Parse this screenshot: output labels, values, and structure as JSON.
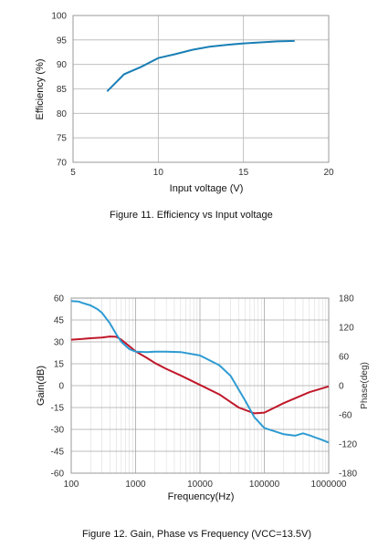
{
  "chart_data": [
    {
      "type": "line",
      "caption": "Figure 11. Efficiency vs Input voltage",
      "xlabel": "Input voltage (V)",
      "ylabel": "Efficiency (%)",
      "xlim": [
        5,
        20
      ],
      "ylim": [
        70,
        100
      ],
      "xticks": [
        5,
        10,
        15,
        20
      ],
      "yticks": [
        70,
        75,
        80,
        85,
        90,
        95,
        100
      ],
      "grid": true,
      "line_color": "#1a7fb5",
      "series": [
        {
          "x": [
            7,
            8,
            9,
            10,
            11,
            12,
            13,
            14,
            15,
            16,
            17,
            18
          ],
          "y": [
            84.5,
            88.0,
            89.5,
            91.3,
            92.1,
            93.0,
            93.6,
            94.0,
            94.3,
            94.5,
            94.7,
            94.8
          ]
        }
      ]
    },
    {
      "type": "line",
      "caption": "Figure 12. Gain, Phase vs Frequency (VCC=13.5V)",
      "xlabel": "Frequency(Hz)",
      "ylabel": "Gain(dB)",
      "y2label": "Phase(deg)",
      "xscale": "log",
      "xlim": [
        100,
        1000000
      ],
      "ylim": [
        -60,
        60
      ],
      "y2lim": [
        -180,
        180
      ],
      "xticks": [
        100,
        1000,
        10000,
        100000,
        1000000
      ],
      "xticklabels": [
        "100",
        "1000",
        "10000",
        "100000",
        "1000000"
      ],
      "yticks": [
        -60,
        -45,
        -30,
        -15,
        0,
        15,
        30,
        45,
        60
      ],
      "y2ticks": [
        -180,
        -120,
        -60,
        0,
        60,
        120,
        180
      ],
      "grid": true,
      "series": [
        {
          "axis": "left",
          "color": "#c0182a",
          "x": [
            100,
            150,
            200,
            300,
            400,
            500,
            600,
            800,
            1000,
            1500,
            2000,
            3000,
            5000,
            10000,
            20000,
            40000,
            70000,
            100000,
            200000,
            500000,
            1000000
          ],
          "y": [
            31.5,
            32.0,
            32.5,
            33.0,
            33.7,
            33.5,
            31.5,
            27.0,
            23.5,
            19.0,
            15.5,
            11.5,
            7.0,
            0.5,
            -6.0,
            -15.0,
            -19.0,
            -18.5,
            -12.0,
            -4.5,
            -0.5
          ]
        },
        {
          "axis": "right",
          "color": "#2e9bd2",
          "x": [
            100,
            130,
            150,
            200,
            250,
            300,
            400,
            500,
            600,
            800,
            1000,
            1500,
            2000,
            3000,
            5000,
            10000,
            20000,
            30000,
            50000,
            70000,
            100000,
            200000,
            300000,
            400000,
            500000,
            600000,
            800000,
            1000000
          ],
          "y": [
            174,
            173,
            170,
            165,
            158,
            150,
            128,
            106,
            90,
            75,
            70,
            69,
            70,
            70,
            69,
            62,
            42,
            20,
            -30,
            -65,
            -87,
            -100,
            -103,
            -98,
            -102,
            -106,
            -112,
            -117
          ]
        }
      ]
    }
  ]
}
